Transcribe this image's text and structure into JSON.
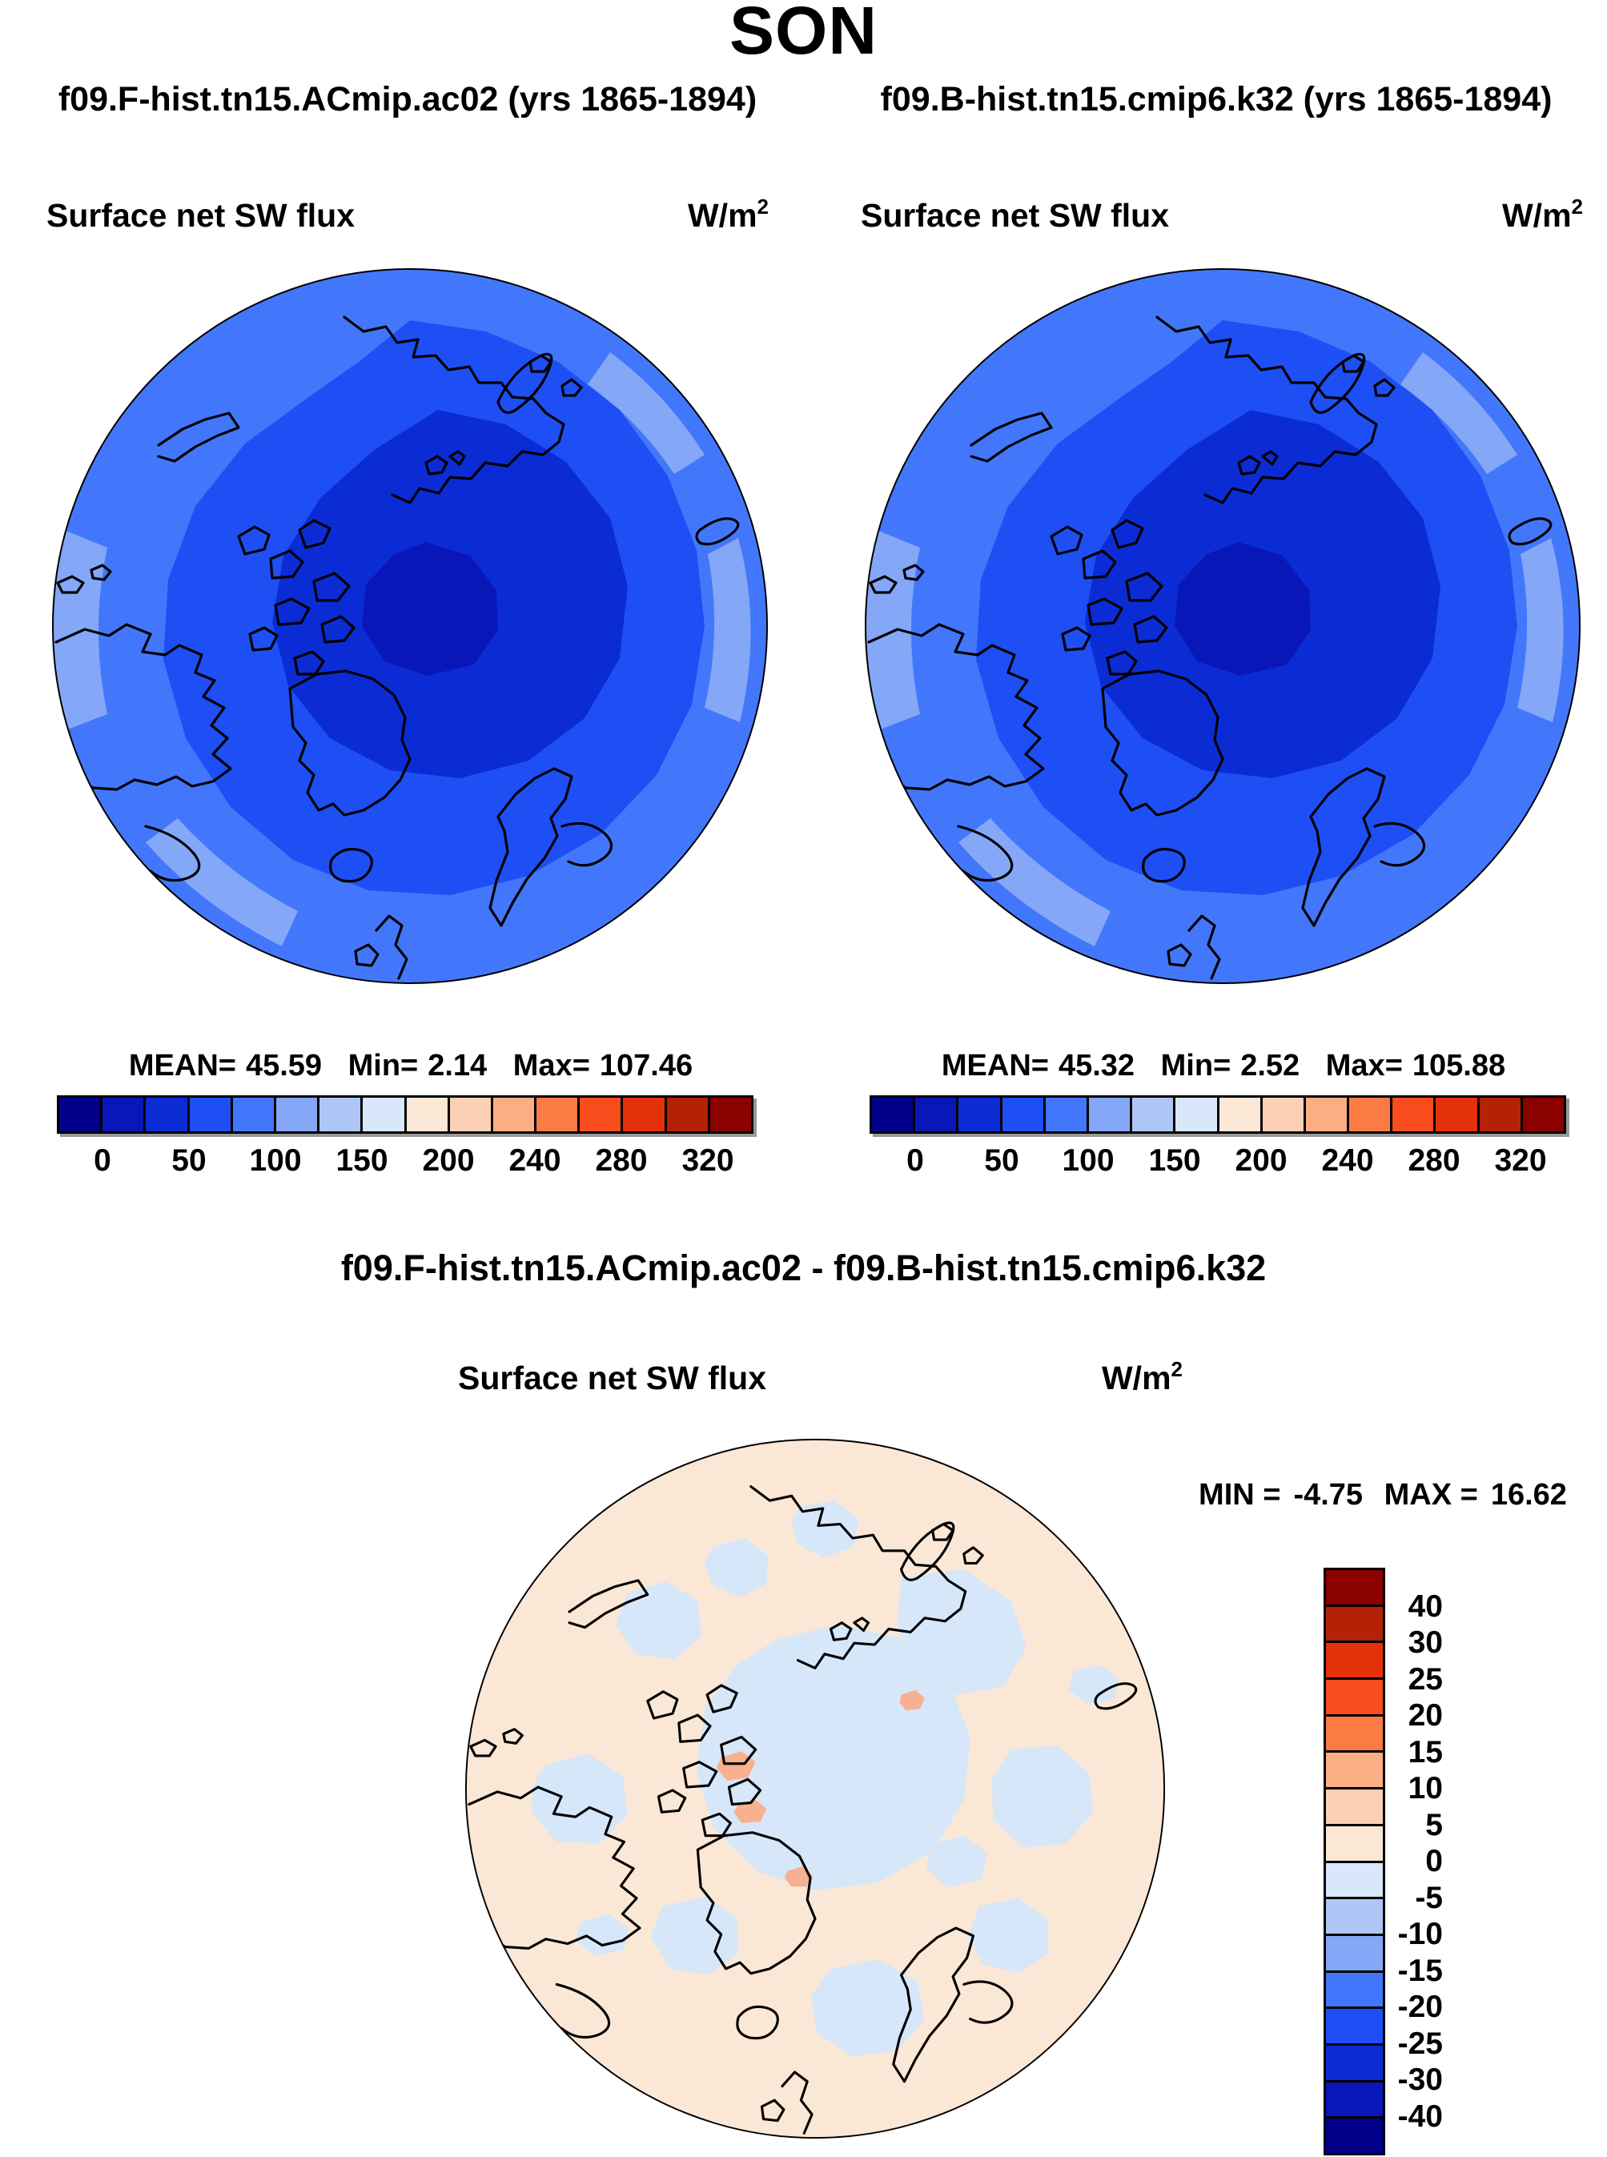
{
  "page_title": "SON",
  "panels": {
    "left": {
      "run_label": "f09.F-hist.tn15.ACmip.ac02 (yrs 1865-1894)",
      "field_title": "Surface net SW flux",
      "units_base": "W/m",
      "units_exponent": "2",
      "stats": {
        "mean_label": "MEAN=",
        "mean_value": "45.59",
        "min_label": "Min=",
        "min_value": "2.14",
        "max_label": "Max=",
        "max_value": "107.46"
      }
    },
    "right": {
      "run_label": "f09.B-hist.tn15.cmip6.k32 (yrs 1865-1894)",
      "field_title": "Surface net SW flux",
      "units_base": "W/m",
      "units_exponent": "2",
      "stats": {
        "mean_label": "MEAN=",
        "mean_value": "45.32",
        "min_label": "Min=",
        "min_value": "2.52",
        "max_label": "Max=",
        "max_value": "105.88"
      }
    },
    "diff": {
      "title": "f09.F-hist.tn15.ACmip.ac02 - f09.B-hist.tn15.cmip6.k32",
      "field_title": "Surface net SW flux",
      "units_base": "W/m",
      "units_exponent": "2",
      "stats": {
        "min_label": "MIN =",
        "min_value": "-4.75",
        "max_label": "MAX =",
        "max_value": "16.62"
      }
    }
  },
  "colorbar_horizontal": {
    "colors": [
      "#00008B",
      "#0A17B8",
      "#0B2CD5",
      "#1E4FF4",
      "#4377FB",
      "#84A7F7",
      "#AEC6F5",
      "#D8E7FA",
      "#FBE7D5",
      "#FCD0B4",
      "#FCAE83",
      "#FB7B44",
      "#F94D1D",
      "#E33209",
      "#B42206",
      "#8B0000"
    ],
    "tick_labels": [
      "0",
      "50",
      "100",
      "150",
      "200",
      "240",
      "280",
      "320"
    ]
  },
  "colorbar_vertical": {
    "colors": [
      "#8B0000",
      "#B42206",
      "#E33209",
      "#F94D1D",
      "#FB7B44",
      "#FCAE83",
      "#FCD0B4",
      "#FBE7D5",
      "#D8E7FA",
      "#AEC6F5",
      "#84A7F7",
      "#4377FB",
      "#1E4FF4",
      "#0B2CD5",
      "#0A17B8",
      "#00008B"
    ],
    "labels": [
      "40",
      "30",
      "25",
      "20",
      "15",
      "10",
      "5",
      "0",
      "-5",
      "-10",
      "-15",
      "-20",
      "-25",
      "-30",
      "-40"
    ]
  },
  "map_colors": {
    "outer_ring": "#4377FB",
    "outer_ring_light": "#84A7F7",
    "mid_band": "#1E4FF4",
    "polar_cap": "#0B2CD5",
    "polar_core": "#0A17B8",
    "diff_background": "#FBE7D5",
    "diff_negative_patch": "#D6E7F9",
    "diff_positive_spot": "#F7B090",
    "coastline": "#000000"
  },
  "chart_data": [
    {
      "type": "heatmap",
      "panel": "top-left",
      "projection": "north_polar_stereographic",
      "title": "Surface net SW flux",
      "run": "f09.F-hist.tn15.ACmip.ac02",
      "years": "1865-1894",
      "units": "W/m2",
      "stats": {
        "mean": 45.59,
        "min": 2.14,
        "max": 107.46
      },
      "contour_levels": [
        0,
        25,
        50,
        75,
        100,
        125,
        150,
        175,
        200,
        220,
        240,
        260,
        280,
        300,
        320
      ],
      "colorbar_ticks": [
        0,
        50,
        100,
        150,
        200,
        240,
        280,
        320
      ],
      "palette": [
        "#00008B",
        "#0A17B8",
        "#0B2CD5",
        "#1E4FF4",
        "#4377FB",
        "#84A7F7",
        "#AEC6F5",
        "#D8E7FA",
        "#FBE7D5",
        "#FCD0B4",
        "#FCAE83",
        "#FB7B44",
        "#F94D1D",
        "#E33209",
        "#B42206",
        "#8B0000"
      ],
      "legend_position": "bottom"
    },
    {
      "type": "heatmap",
      "panel": "top-right",
      "projection": "north_polar_stereographic",
      "title": "Surface net SW flux",
      "run": "f09.B-hist.tn15.cmip6.k32",
      "years": "1865-1894",
      "units": "W/m2",
      "stats": {
        "mean": 45.32,
        "min": 2.52,
        "max": 105.88
      },
      "contour_levels": [
        0,
        25,
        50,
        75,
        100,
        125,
        150,
        175,
        200,
        220,
        240,
        260,
        280,
        300,
        320
      ],
      "colorbar_ticks": [
        0,
        50,
        100,
        150,
        200,
        240,
        280,
        320
      ],
      "palette": [
        "#00008B",
        "#0A17B8",
        "#0B2CD5",
        "#1E4FF4",
        "#4377FB",
        "#84A7F7",
        "#AEC6F5",
        "#D8E7FA",
        "#FBE7D5",
        "#FCD0B4",
        "#FCAE83",
        "#FB7B44",
        "#F94D1D",
        "#E33209",
        "#B42206",
        "#8B0000"
      ],
      "legend_position": "bottom"
    },
    {
      "type": "heatmap",
      "panel": "bottom-difference",
      "projection": "north_polar_stereographic",
      "title": "Surface net SW flux",
      "run": "f09.F-hist.tn15.ACmip.ac02 - f09.B-hist.tn15.cmip6.k32",
      "units": "W/m2",
      "stats": {
        "min": -4.75,
        "max": 16.62
      },
      "contour_levels": [
        -40,
        -30,
        -25,
        -20,
        -15,
        -10,
        -5,
        0,
        5,
        10,
        15,
        20,
        25,
        30,
        40
      ],
      "colorbar_ticks": [
        40,
        30,
        25,
        20,
        15,
        10,
        5,
        0,
        -5,
        -10,
        -15,
        -20,
        -25,
        -30,
        -40
      ],
      "palette": [
        "#8B0000",
        "#B42206",
        "#E33209",
        "#F94D1D",
        "#FB7B44",
        "#FCAE83",
        "#FCD0B4",
        "#FBE7D5",
        "#D8E7FA",
        "#AEC6F5",
        "#84A7F7",
        "#4377FB",
        "#1E4FF4",
        "#0B2CD5",
        "#0A17B8",
        "#00008B"
      ],
      "legend_position": "right"
    }
  ]
}
